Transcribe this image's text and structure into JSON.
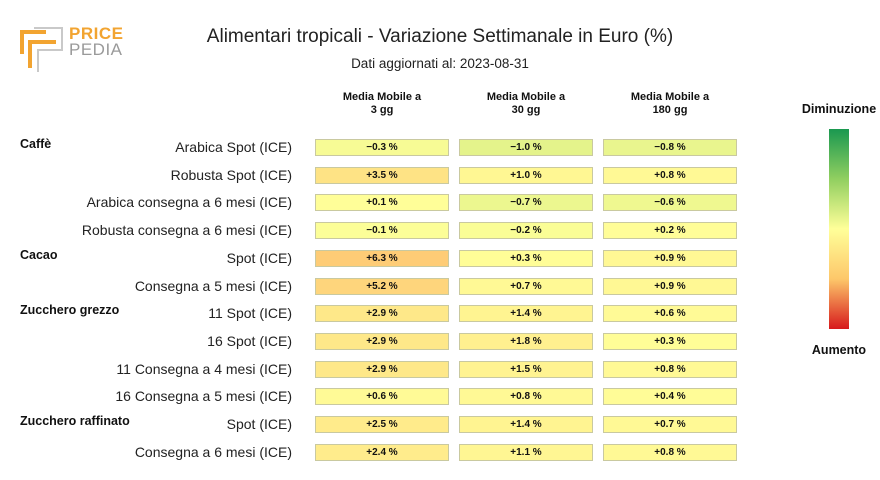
{
  "logo": {
    "line1": "PRICE",
    "line2": "PEDIA"
  },
  "title": "Alimentari tropicali - Variazione Settimanale in Euro (%)",
  "subtitle": "Dati aggiornati al: 2023-08-31",
  "columns": [
    "Media Mobile a 3 gg",
    "Media Mobile a 30 gg",
    "Media Mobile a 180 gg"
  ],
  "legend": {
    "top": "Diminuzione",
    "bottom": "Aumento"
  },
  "colors": {
    "decrease": "#1a9850",
    "neutral": "#ffff99",
    "increase": "#d7191c"
  },
  "chart_data": {
    "type": "heatmap",
    "title": "Alimentari tropicali - Variazione Settimanale in Euro (%)",
    "columns": [
      "Media Mobile a 3 gg",
      "Media Mobile a 30 gg",
      "Media Mobile a 180 gg"
    ],
    "groups": [
      {
        "name": "Caffè",
        "rows": [
          {
            "label": "Arabica Spot (ICE)",
            "values": [
              -0.3,
              -1.0,
              -0.8
            ],
            "texts": [
              "−0.3 %",
              "−1.0 %",
              "−0.8 %"
            ]
          },
          {
            "label": "Robusta Spot (ICE)",
            "values": [
              3.5,
              1.0,
              0.8
            ],
            "texts": [
              "+3.5 %",
              "+1.0 %",
              "+0.8 %"
            ]
          },
          {
            "label": "Arabica consegna a 6 mesi (ICE)",
            "values": [
              0.1,
              -0.7,
              -0.6
            ],
            "texts": [
              "+0.1 %",
              "−0.7 %",
              "−0.6 %"
            ]
          },
          {
            "label": "Robusta consegna a 6 mesi (ICE)",
            "values": [
              -0.1,
              -0.2,
              0.2
            ],
            "texts": [
              "−0.1 %",
              "−0.2 %",
              "+0.2 %"
            ]
          }
        ]
      },
      {
        "name": "Cacao",
        "rows": [
          {
            "label": "Spot (ICE)",
            "values": [
              6.3,
              0.3,
              0.9
            ],
            "texts": [
              "+6.3 %",
              "+0.3 %",
              "+0.9 %"
            ]
          },
          {
            "label": "Consegna a 5 mesi (ICE)",
            "values": [
              5.2,
              0.7,
              0.9
            ],
            "texts": [
              "+5.2 %",
              "+0.7 %",
              "+0.9 %"
            ]
          }
        ]
      },
      {
        "name": "Zucchero grezzo",
        "rows": [
          {
            "label": "11 Spot (ICE)",
            "values": [
              2.9,
              1.4,
              0.6
            ],
            "texts": [
              "+2.9 %",
              "+1.4 %",
              "+0.6 %"
            ]
          },
          {
            "label": "16 Spot (ICE)",
            "values": [
              2.9,
              1.8,
              0.3
            ],
            "texts": [
              "+2.9 %",
              "+1.8 %",
              "+0.3 %"
            ]
          },
          {
            "label": "11 Consegna a 4 mesi (ICE)",
            "values": [
              2.9,
              1.5,
              0.8
            ],
            "texts": [
              "+2.9 %",
              "+1.5 %",
              "+0.8 %"
            ]
          },
          {
            "label": "16 Consegna a 5 mesi (ICE)",
            "values": [
              0.6,
              0.8,
              0.4
            ],
            "texts": [
              "+0.6 %",
              "+0.8 %",
              "+0.4 %"
            ]
          }
        ]
      },
      {
        "name": "Zucchero raffinato",
        "rows": [
          {
            "label": "Spot (ICE)",
            "values": [
              2.5,
              1.4,
              0.7
            ],
            "texts": [
              "+2.5 %",
              "+1.4 %",
              "+0.7 %"
            ]
          },
          {
            "label": "Consegna a 6 mesi (ICE)",
            "values": [
              2.4,
              1.1,
              0.8
            ],
            "texts": [
              "+2.4 %",
              "+1.1 %",
              "+0.8 %"
            ]
          }
        ]
      }
    ]
  }
}
